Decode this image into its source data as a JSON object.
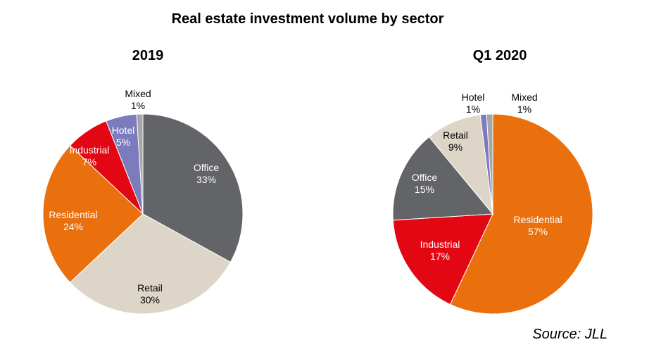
{
  "title": "Real estate investment volume by sector",
  "source": "Source: JLL",
  "chart_data": [
    {
      "type": "pie",
      "title": "2019",
      "slices": [
        {
          "label": "Office",
          "value": 33,
          "value_label": "33%",
          "color": "#636468"
        },
        {
          "label": "Retail",
          "value": 30,
          "value_label": "30%",
          "color": "#ddd6c8"
        },
        {
          "label": "Residential",
          "value": 24,
          "value_label": "24%",
          "color": "#ea700e"
        },
        {
          "label": "Industrial",
          "value": 7,
          "value_label": "7%",
          "color": "#e30613"
        },
        {
          "label": "Hotel",
          "value": 5,
          "value_label": "5%",
          "color": "#7b7bbd"
        },
        {
          "label": "Mixed",
          "value": 1,
          "value_label": "1%",
          "color": "#a6a6a6"
        }
      ]
    },
    {
      "type": "pie",
      "title": "Q1 2020",
      "slices": [
        {
          "label": "Residential",
          "value": 57,
          "value_label": "57%",
          "color": "#ea700e"
        },
        {
          "label": "Industrial",
          "value": 17,
          "value_label": "17%",
          "color": "#e30613"
        },
        {
          "label": "Office",
          "value": 15,
          "value_label": "15%",
          "color": "#636468"
        },
        {
          "label": "Retail",
          "value": 9,
          "value_label": "9%",
          "color": "#ddd6c8"
        },
        {
          "label": "Hotel",
          "value": 1,
          "value_label": "1%",
          "color": "#7b7bbd"
        },
        {
          "label": "Mixed",
          "value": 1,
          "value_label": "1%",
          "color": "#a6a6a6"
        }
      ]
    }
  ]
}
